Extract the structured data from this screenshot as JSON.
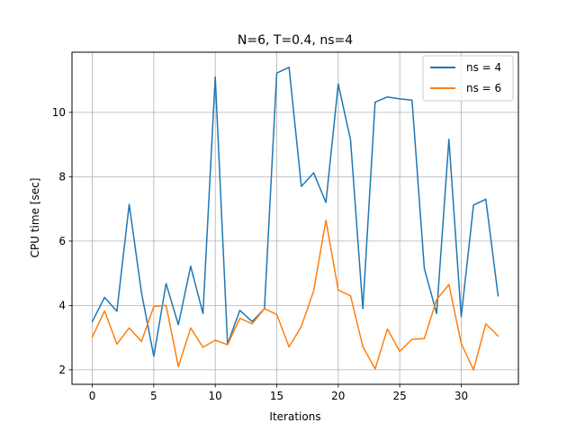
{
  "chart_data": {
    "type": "line",
    "title": "N=6, T=0.4, ns=4",
    "xlabel": "Iterations",
    "ylabel": "CPU time [sec]",
    "xlim": [
      -1.65,
      34.65
    ],
    "ylim": [
      1.55,
      11.87
    ],
    "xticks": [
      0,
      5,
      10,
      15,
      20,
      25,
      30
    ],
    "yticks": [
      2,
      4,
      6,
      8,
      10
    ],
    "grid": true,
    "legend_position": "top-right",
    "x": [
      0,
      1,
      2,
      3,
      4,
      5,
      6,
      7,
      8,
      9,
      10,
      11,
      12,
      13,
      14,
      15,
      16,
      17,
      18,
      19,
      20,
      21,
      22,
      23,
      24,
      25,
      26,
      27,
      28,
      29,
      30,
      31,
      32,
      33
    ],
    "series": [
      {
        "name": "ns = 4",
        "color": "#1f77b4",
        "values": [
          3.5,
          4.25,
          3.82,
          7.14,
          4.4,
          2.42,
          4.68,
          3.4,
          5.22,
          3.75,
          11.1,
          2.8,
          3.85,
          3.5,
          3.9,
          11.22,
          11.4,
          7.7,
          8.12,
          7.2,
          10.88,
          9.15,
          3.9,
          10.32,
          10.48,
          10.42,
          10.38,
          5.15,
          3.75,
          9.16,
          3.65,
          7.12,
          7.3,
          4.3
        ]
      },
      {
        "name": "ns = 6",
        "color": "#ff7f0e",
        "values": [
          3.02,
          3.83,
          2.8,
          3.3,
          2.88,
          3.97,
          4.0,
          2.1,
          3.3,
          2.7,
          2.92,
          2.78,
          3.6,
          3.43,
          3.9,
          3.72,
          2.71,
          3.35,
          4.45,
          6.65,
          4.48,
          4.3,
          2.72,
          2.03,
          3.27,
          2.57,
          2.95,
          2.97,
          4.18,
          4.65,
          2.82,
          2.0,
          3.43,
          3.05
        ]
      }
    ]
  }
}
